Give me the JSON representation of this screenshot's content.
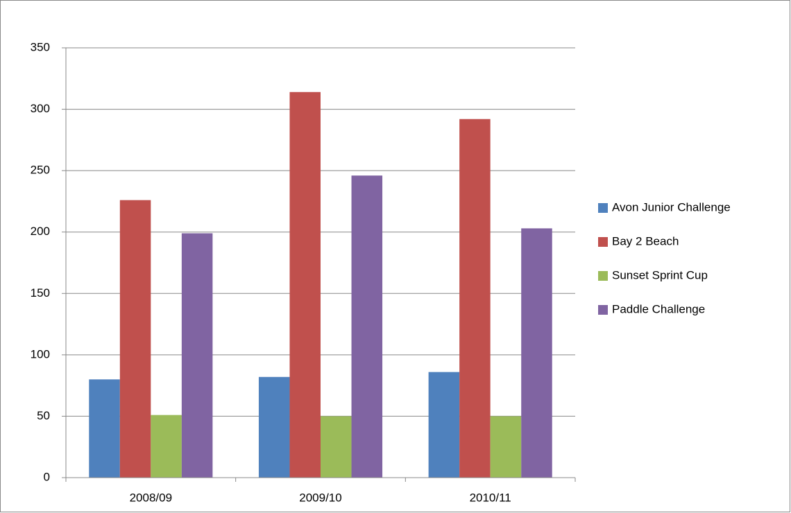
{
  "chart_data": {
    "type": "bar",
    "categories": [
      "2008/09",
      "2009/10",
      "2010/11"
    ],
    "series": [
      {
        "name": "Avon Junior Challenge",
        "color": "#4f81bd",
        "values": [
          80,
          82,
          86
        ]
      },
      {
        "name": "Bay 2 Beach",
        "color": "#c0504d",
        "values": [
          226,
          314,
          292
        ]
      },
      {
        "name": "Sunset Sprint Cup",
        "color": "#9bbb59",
        "values": [
          51,
          50,
          50
        ]
      },
      {
        "name": "Paddle Challenge",
        "color": "#8064a2",
        "values": [
          199,
          246,
          203
        ]
      }
    ],
    "ylim": [
      0,
      350
    ],
    "yticks": [
      0,
      50,
      100,
      150,
      200,
      250,
      300,
      350
    ],
    "grid": true,
    "legend": "right"
  }
}
